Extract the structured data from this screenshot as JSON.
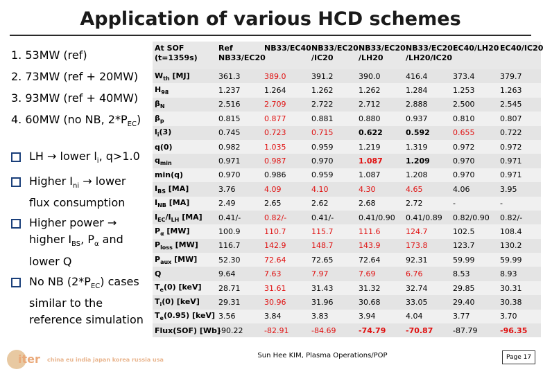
{
  "title": "Application of various HCD schemes",
  "cases": [
    {
      "text": "1. 53MW (ref)",
      "sub": "",
      "tail": ""
    },
    {
      "text": "2. 73MW (ref + 20MW)",
      "sub": "",
      "tail": ""
    },
    {
      "text": "3. 93MW (ref + 40MW)",
      "sub": "",
      "tail": ""
    },
    {
      "text": "4. 60MW (no NB, 2*P",
      "sub": "EC",
      "tail": ")"
    }
  ],
  "bullets": [
    {
      "parts": [
        {
          "t": "LH → lower l"
        },
        {
          "s": "i"
        },
        {
          "t": ", q>1.0"
        }
      ]
    },
    {
      "parts": [
        {
          "t": "Higher I"
        },
        {
          "s": "ni"
        },
        {
          "t": " → lower flux consumption"
        }
      ]
    },
    {
      "parts": [
        {
          "t": "Higher power → higher I"
        },
        {
          "s": "BS"
        },
        {
          "t": ", P"
        },
        {
          "s": "α"
        },
        {
          "t": " and lower Q"
        }
      ]
    },
    {
      "parts": [
        {
          "t": "No NB (2*P"
        },
        {
          "s": "EC"
        },
        {
          "t": ") cases similar to the reference simulation"
        }
      ]
    }
  ],
  "table": {
    "headers": [
      "At SOF (t=1359s)",
      "Ref NB33/EC20",
      "NB33/EC40",
      "NB33/EC20 /IC20",
      "NB33/EC20 /LH20",
      "NB33/EC20 /LH20/IC20",
      "EC40/LH20",
      "EC40/IC20"
    ],
    "rows": [
      {
        "label": [
          {
            "t": "W"
          },
          {
            "s": "th"
          },
          {
            "t": " [MJ]"
          }
        ],
        "cells": [
          "361.3",
          "389.0",
          "391.2",
          "390.0",
          "416.4",
          "373.4",
          "379.7"
        ],
        "red": [
          1
        ],
        "bold": []
      },
      {
        "label": [
          {
            "t": "H"
          },
          {
            "s": "98"
          }
        ],
        "cells": [
          "1.237",
          "1.264",
          "1.262",
          "1.262",
          "1.284",
          "1.253",
          "1.263"
        ],
        "red": [],
        "bold": []
      },
      {
        "label": [
          {
            "t": "β"
          },
          {
            "s": "N"
          }
        ],
        "cells": [
          "2.516",
          "2.709",
          "2.722",
          "2.712",
          "2.888",
          "2.500",
          "2.545"
        ],
        "red": [
          1
        ],
        "bold": []
      },
      {
        "label": [
          {
            "t": "β"
          },
          {
            "s": "p"
          }
        ],
        "cells": [
          "0.815",
          "0.877",
          "0.881",
          "0.880",
          "0.937",
          "0.810",
          "0.807"
        ],
        "red": [
          1
        ],
        "bold": []
      },
      {
        "label": [
          {
            "t": "l"
          },
          {
            "s": "i"
          },
          {
            "t": "(3)"
          }
        ],
        "cells": [
          "0.745",
          "0.723",
          "0.715",
          "0.622",
          "0.592",
          "0.655",
          "0.722"
        ],
        "red": [
          1,
          2,
          5
        ],
        "bold": [
          3,
          4
        ]
      },
      {
        "label": [
          {
            "t": "q(0)"
          }
        ],
        "cells": [
          "0.982",
          "1.035",
          "0.959",
          "1.219",
          "1.319",
          "0.972",
          "0.972"
        ],
        "red": [
          1
        ],
        "bold": []
      },
      {
        "label": [
          {
            "t": "q"
          },
          {
            "s": "min"
          }
        ],
        "cells": [
          "0.971",
          "0.987",
          "0.970",
          "1.087",
          "1.209",
          "0.970",
          "0.971"
        ],
        "red": [
          1,
          3
        ],
        "bold": [
          3,
          4
        ]
      },
      {
        "label": [
          {
            "t": "min(q)"
          }
        ],
        "cells": [
          "0.970",
          "0.986",
          "0.959",
          "1.087",
          "1.208",
          "0.970",
          "0.971"
        ],
        "red": [],
        "bold": []
      },
      {
        "label": [
          {
            "t": "I"
          },
          {
            "s": "BS"
          },
          {
            "t": " [MA]"
          }
        ],
        "cells": [
          "3.76",
          "4.09",
          "4.10",
          "4.30",
          "4.65",
          "4.06",
          "3.95"
        ],
        "red": [
          1,
          2,
          3,
          4
        ],
        "bold": []
      },
      {
        "label": [
          {
            "t": "I"
          },
          {
            "s": "NB"
          },
          {
            "t": " [MA]"
          }
        ],
        "cells": [
          "2.49",
          "2.65",
          "2.62",
          "2.68",
          "2.72",
          "-",
          "-"
        ],
        "red": [],
        "bold": []
      },
      {
        "label": [
          {
            "t": "I"
          },
          {
            "s": "EC"
          },
          {
            "t": "/I"
          },
          {
            "s": "LH"
          },
          {
            "t": " [MA]"
          }
        ],
        "cells": [
          "0.41/-",
          "0.82/-",
          "0.41/-",
          "0.41/0.90",
          "0.41/0.89",
          "0.82/0.90",
          "0.82/-"
        ],
        "red": [
          1
        ],
        "bold": []
      },
      {
        "label": [
          {
            "t": "P"
          },
          {
            "s": "α"
          },
          {
            "t": " [MW]"
          }
        ],
        "cells": [
          "100.9",
          "110.7",
          "115.7",
          "111.6",
          "124.7",
          "102.5",
          "108.4"
        ],
        "red": [
          1,
          2,
          3,
          4
        ],
        "bold": []
      },
      {
        "label": [
          {
            "t": "P"
          },
          {
            "s": "loss"
          },
          {
            "t": " [MW]"
          }
        ],
        "cells": [
          "116.7",
          "142.9",
          "148.7",
          "143.9",
          "173.8",
          "123.7",
          "130.2"
        ],
        "red": [
          1,
          2,
          3,
          4
        ],
        "bold": []
      },
      {
        "label": [
          {
            "t": "P"
          },
          {
            "s": "aux"
          },
          {
            "t": " [MW]"
          }
        ],
        "cells": [
          "52.30",
          "72.64",
          "72.65",
          "72.64",
          "92.31",
          "59.99",
          "59.99"
        ],
        "red": [
          1
        ],
        "bold": []
      },
      {
        "label": [
          {
            "t": "Q"
          }
        ],
        "cells": [
          "9.64",
          "7.63",
          "7.97",
          "7.69",
          "6.76",
          "8.53",
          "8.93"
        ],
        "red": [
          1,
          2,
          3,
          4
        ],
        "bold": []
      },
      {
        "label": [
          {
            "t": "T"
          },
          {
            "s": "e"
          },
          {
            "t": "(0) [keV]"
          }
        ],
        "cells": [
          "28.71",
          "31.61",
          "31.43",
          "31.32",
          "32.74",
          "29.85",
          "30.31"
        ],
        "red": [
          1
        ],
        "bold": []
      },
      {
        "label": [
          {
            "t": "T"
          },
          {
            "s": "i"
          },
          {
            "t": "(0) [keV]"
          }
        ],
        "cells": [
          "29.31",
          "30.96",
          "31.96",
          "30.68",
          "33.05",
          "29.40",
          "30.38"
        ],
        "red": [
          1
        ],
        "bold": []
      },
      {
        "label": [
          {
            "t": "T"
          },
          {
            "s": "e"
          },
          {
            "t": "(0.95) [keV]"
          }
        ],
        "cells": [
          "3.56",
          "3.84",
          "3.83",
          "3.94",
          "4.04",
          "3.77",
          "3.70"
        ],
        "red": [],
        "bold": []
      },
      {
        "label": [
          {
            "t": "Flux(SOF) [Wb]"
          }
        ],
        "cells": [
          "-90.22",
          "-82.91",
          "-84.69",
          "-74.79",
          "-70.87",
          "-87.79",
          "-96.35"
        ],
        "red": [
          1,
          2,
          3,
          4,
          6
        ],
        "bold": [
          3,
          4,
          6
        ]
      }
    ]
  },
  "footer": {
    "logo_text": "iter",
    "logo_langs": "china eu india japan korea russia usa",
    "center": "Sun Hee KIM, Plasma Operations/POP",
    "page": "Page 17"
  }
}
